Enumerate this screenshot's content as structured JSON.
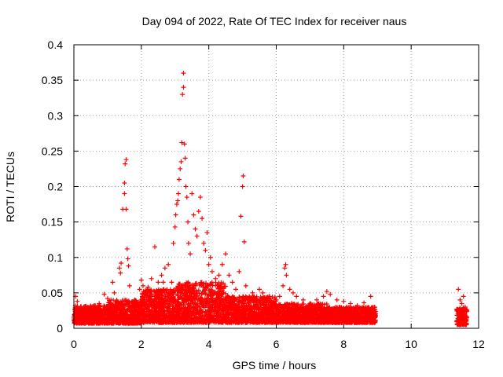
{
  "chart_data": {
    "type": "scatter",
    "title": "Day 094 of 2022, Rate Of TEC Index for receiver naus",
    "xlabel": "GPS time / hours",
    "ylabel": "ROTI / TECUs",
    "xlim": [
      0,
      12
    ],
    "ylim": [
      0,
      0.4
    ],
    "xticks": [
      0,
      2,
      4,
      6,
      8,
      10,
      12
    ],
    "xtick_labels": [
      "0",
      "2",
      "4",
      "6",
      "8",
      "10",
      "12"
    ],
    "yticks": [
      0,
      0.05,
      0.1,
      0.15,
      0.2,
      0.25,
      0.3,
      0.35,
      0.4
    ],
    "ytick_labels": [
      "0",
      "0.05",
      "0.1",
      "0.15",
      "0.2",
      "0.25",
      "0.3",
      "0.35",
      "0.4"
    ],
    "grid": true,
    "marker": "+",
    "marker_color": "#ff0000",
    "series": [
      {
        "points": [
          [
            0.05,
            0.045
          ],
          [
            0.1,
            0.038
          ],
          [
            0.2,
            0.03
          ],
          [
            0.3,
            0.026
          ],
          [
            0.45,
            0.028
          ],
          [
            0.6,
            0.032
          ],
          [
            0.75,
            0.035
          ],
          [
            0.9,
            0.048
          ],
          [
            1.0,
            0.042
          ],
          [
            1.1,
            0.04
          ],
          [
            1.15,
            0.065
          ],
          [
            1.2,
            0.05
          ],
          [
            1.35,
            0.085
          ],
          [
            1.38,
            0.078
          ],
          [
            1.4,
            0.092
          ],
          [
            1.45,
            0.168
          ],
          [
            1.5,
            0.19
          ],
          [
            1.5,
            0.205
          ],
          [
            1.52,
            0.232
          ],
          [
            1.55,
            0.238
          ],
          [
            1.55,
            0.168
          ],
          [
            1.58,
            0.112
          ],
          [
            1.6,
            0.098
          ],
          [
            1.62,
            0.088
          ],
          [
            1.65,
            0.06
          ],
          [
            1.8,
            0.04
          ],
          [
            1.95,
            0.055
          ],
          [
            2.0,
            0.068
          ],
          [
            2.05,
            0.06
          ],
          [
            2.1,
            0.048
          ],
          [
            2.2,
            0.058
          ],
          [
            2.3,
            0.07
          ],
          [
            2.4,
            0.115
          ],
          [
            2.5,
            0.065
          ],
          [
            2.6,
            0.075
          ],
          [
            2.65,
            0.065
          ],
          [
            2.7,
            0.085
          ],
          [
            2.8,
            0.09
          ],
          [
            2.9,
            0.065
          ],
          [
            2.95,
            0.12
          ],
          [
            3.0,
            0.143
          ],
          [
            3.02,
            0.16
          ],
          [
            3.05,
            0.175
          ],
          [
            3.08,
            0.18
          ],
          [
            3.1,
            0.19
          ],
          [
            3.12,
            0.21
          ],
          [
            3.15,
            0.225
          ],
          [
            3.18,
            0.235
          ],
          [
            3.2,
            0.262
          ],
          [
            3.22,
            0.33
          ],
          [
            3.25,
            0.36
          ],
          [
            3.25,
            0.34
          ],
          [
            3.28,
            0.26
          ],
          [
            3.3,
            0.24
          ],
          [
            3.32,
            0.2
          ],
          [
            3.35,
            0.185
          ],
          [
            3.38,
            0.15
          ],
          [
            3.4,
            0.12
          ],
          [
            3.45,
            0.105
          ],
          [
            3.5,
            0.19
          ],
          [
            3.55,
            0.16
          ],
          [
            3.6,
            0.14
          ],
          [
            3.65,
            0.13
          ],
          [
            3.7,
            0.165
          ],
          [
            3.75,
            0.185
          ],
          [
            3.8,
            0.155
          ],
          [
            3.85,
            0.12
          ],
          [
            3.9,
            0.11
          ],
          [
            3.95,
            0.135
          ],
          [
            4.0,
            0.09
          ],
          [
            4.05,
            0.1
          ],
          [
            4.1,
            0.08
          ],
          [
            4.2,
            0.07
          ],
          [
            4.3,
            0.075
          ],
          [
            4.4,
            0.09
          ],
          [
            4.5,
            0.105
          ],
          [
            4.6,
            0.075
          ],
          [
            4.7,
            0.065
          ],
          [
            4.8,
            0.055
          ],
          [
            4.9,
            0.08
          ],
          [
            4.95,
            0.158
          ],
          [
            5.0,
            0.2
          ],
          [
            5.02,
            0.215
          ],
          [
            5.05,
            0.122
          ],
          [
            5.1,
            0.06
          ],
          [
            5.2,
            0.045
          ],
          [
            5.3,
            0.05
          ],
          [
            5.4,
            0.04
          ],
          [
            5.5,
            0.055
          ],
          [
            5.6,
            0.05
          ],
          [
            5.7,
            0.04
          ],
          [
            5.8,
            0.045
          ],
          [
            5.9,
            0.035
          ],
          [
            6.0,
            0.04
          ],
          [
            6.1,
            0.045
          ],
          [
            6.2,
            0.06
          ],
          [
            6.25,
            0.085
          ],
          [
            6.28,
            0.09
          ],
          [
            6.3,
            0.075
          ],
          [
            6.4,
            0.055
          ],
          [
            6.5,
            0.05
          ],
          [
            6.6,
            0.045
          ],
          [
            6.8,
            0.04
          ],
          [
            7.0,
            0.035
          ],
          [
            7.2,
            0.04
          ],
          [
            7.4,
            0.045
          ],
          [
            7.5,
            0.052
          ],
          [
            7.6,
            0.048
          ],
          [
            7.8,
            0.04
          ],
          [
            8.0,
            0.038
          ],
          [
            8.2,
            0.035
          ],
          [
            8.4,
            0.032
          ],
          [
            8.6,
            0.036
          ],
          [
            8.8,
            0.045
          ],
          [
            8.9,
            0.02
          ],
          [
            11.4,
            0.055
          ],
          [
            11.45,
            0.04
          ],
          [
            11.5,
            0.035
          ],
          [
            11.55,
            0.045
          ],
          [
            11.6,
            0.03
          ]
        ]
      }
    ],
    "dense_band": {
      "segments": [
        {
          "x": [
            0.0,
            1.0
          ],
          "y": [
            0.007,
            0.032
          ]
        },
        {
          "x": [
            1.0,
            2.0
          ],
          "y": [
            0.007,
            0.04
          ]
        },
        {
          "x": [
            2.0,
            3.0
          ],
          "y": [
            0.008,
            0.055
          ]
        },
        {
          "x": [
            3.0,
            4.5
          ],
          "y": [
            0.008,
            0.065
          ]
        },
        {
          "x": [
            4.5,
            6.0
          ],
          "y": [
            0.008,
            0.045
          ]
        },
        {
          "x": [
            6.0,
            7.5
          ],
          "y": [
            0.008,
            0.035
          ]
        },
        {
          "x": [
            7.5,
            8.95
          ],
          "y": [
            0.008,
            0.03
          ]
        },
        {
          "x": [
            11.35,
            11.65
          ],
          "y": [
            0.005,
            0.03
          ]
        }
      ]
    }
  }
}
